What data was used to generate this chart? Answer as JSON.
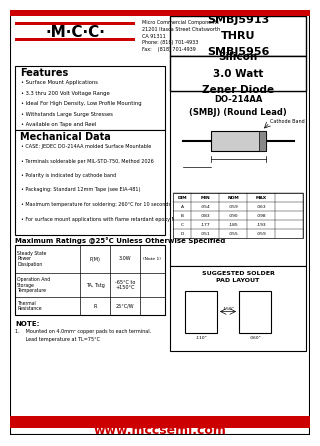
{
  "title_part": "SMBJ5913\nTHRU\nSMBJ5956",
  "subtitle": "Silicon\n3.0 Watt\nZener Diode",
  "package": "DO-214AA\n(SMBJ) (Round Lead)",
  "company": "Micro Commercial Components\n21201 Itasca Street Chatsworth\nCA 91311\nPhone: (818) 701-4933\nFax:    (818) 701-4939",
  "logo_text": "·M·C·C·",
  "features_title": "Features",
  "features": [
    "Surface Mount Applications",
    "3.3 thru 200 Volt Voltage Range",
    "Ideal For High Density, Low Profile Mounting",
    "Withstands Large Surge Stresses",
    "Available on Tape and Reel"
  ],
  "mech_title": "Mechanical Data",
  "mech_items": [
    "CASE: JEDEC DO-214AA molded Surface Mountable",
    "Terminals solderable per MIL-STD-750, Method 2026",
    "Polarity is indicated by cathode band",
    "Packaging: Standard 12mm Tape (see EIA-481)",
    "Maximum temperature for soldering: 260°C for 10 seconds",
    "For surface mount applications with flame retardant epoxy Meeting UL94V-0"
  ],
  "ratings_title": "Maximum Ratings @25°C Unless Otherwise Specified",
  "table_rows": [
    [
      "Steady State\nPower\nDissipation",
      "P(M)",
      "3.0W",
      "(Note 1)"
    ],
    [
      "Operation And\nStorage\nTemperature",
      "TA, Tstg",
      "-65°C to\n+150°C",
      ""
    ],
    [
      "Thermal\nResistance",
      "R",
      "25°C/W",
      ""
    ]
  ],
  "note_title": "NOTE:",
  "note_lines": [
    "1.    Mounted on 4.0mm² copper pads to each terminal.",
    "       Lead temperature at TL=75°C"
  ],
  "website": "www.mccsemi.com",
  "bg_color": "#ffffff",
  "red_color": "#cc0000",
  "dim_table": [
    [
      "DIM",
      "MIN",
      "NOM",
      "MAX"
    ],
    [
      "A",
      ".054",
      ".059",
      ".063"
    ],
    [
      "B",
      ".083",
      ".090",
      ".098"
    ],
    [
      "C",
      ".177",
      ".185",
      ".193"
    ],
    [
      "D",
      ".051",
      ".055",
      ".059"
    ]
  ]
}
